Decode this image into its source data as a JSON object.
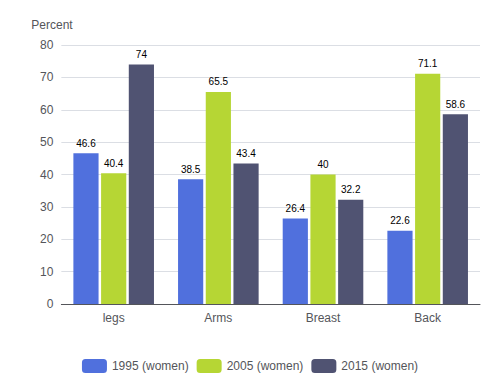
{
  "chart_data": {
    "type": "bar",
    "ylabel": "Percent",
    "categories": [
      "legs",
      "Arms",
      "Breast",
      "Back"
    ],
    "series": [
      {
        "name": "1995 (women)",
        "values": [
          46.6,
          38.5,
          26.4,
          22.6
        ]
      },
      {
        "name": "2005 (women)",
        "values": [
          40.4,
          65.5,
          40,
          71.1
        ]
      },
      {
        "name": "2015 (women)",
        "values": [
          74,
          43.4,
          32.2,
          58.6
        ]
      }
    ],
    "ylim": [
      0,
      80
    ],
    "yticks": [
      0,
      10,
      20,
      30,
      40,
      50,
      60,
      70,
      80
    ],
    "grid": true,
    "legend": "bottom",
    "data_labels": true
  }
}
